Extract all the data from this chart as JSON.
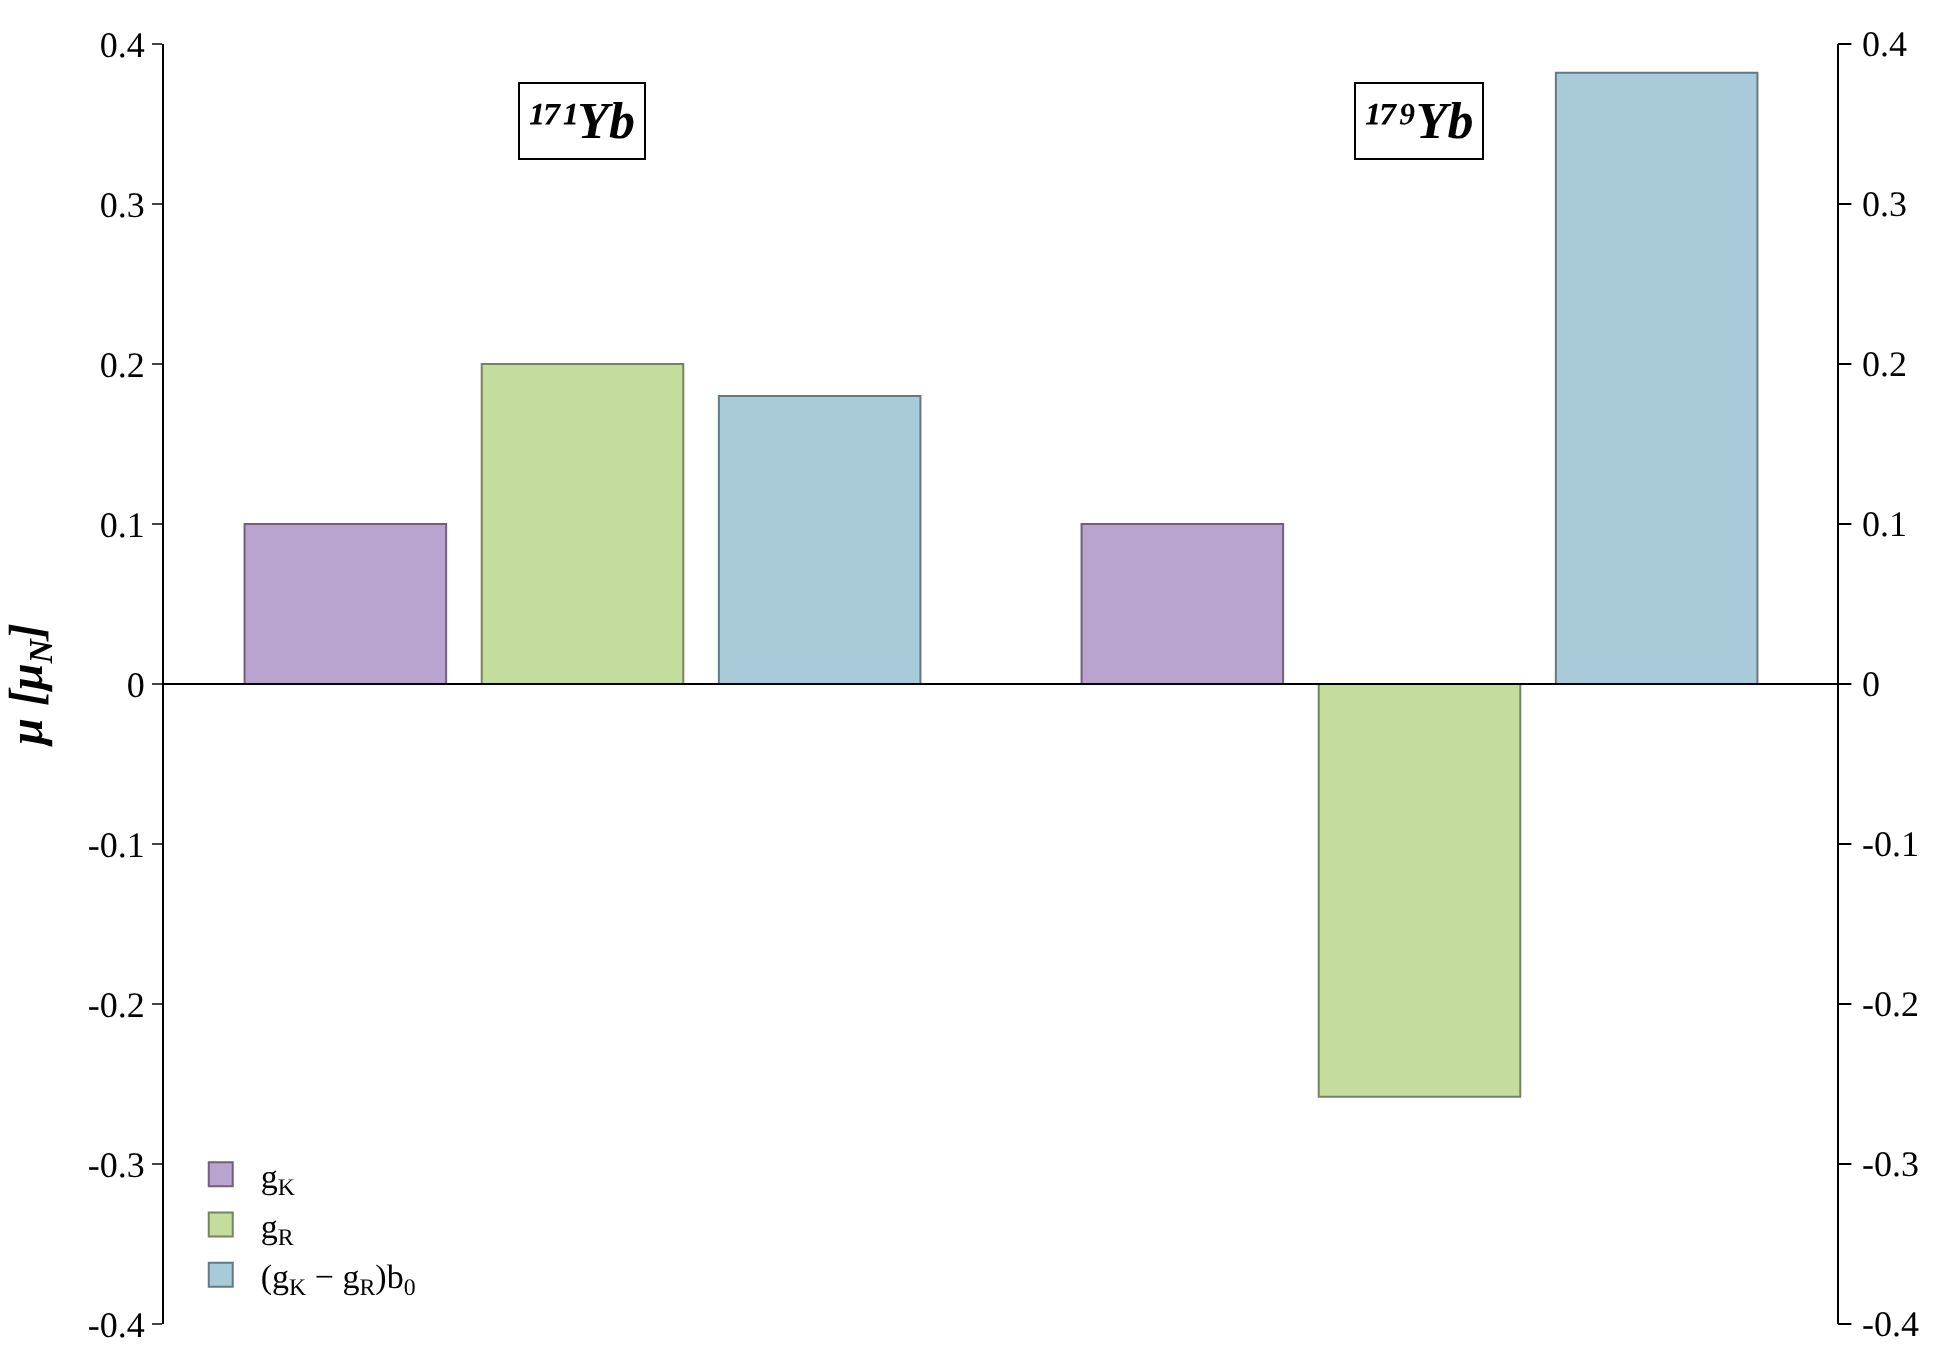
{
  "chart_data": {
    "type": "bar",
    "categories": [
      "¹⁷¹Yb",
      "¹⁷⁹Yb"
    ],
    "ylabel": "μ [μ$_{N}$]",
    "series": [
      {
        "name": "g$_{K}$",
        "color": "#b9a3cf",
        "values": [
          0.1,
          0.1
        ]
      },
      {
        "name": "g$_{R}$",
        "color": "#c5dd9c",
        "values": [
          0.2,
          -0.258
        ]
      },
      {
        "name": "(g$_{K}$ − g$_{R}$)b$_{0}$",
        "color": "#a9cbd9",
        "values": [
          0.18,
          0.382
        ]
      }
    ],
    "ylim": [
      -0.4,
      0.4
    ],
    "yticks": [
      -0.4,
      -0.3,
      -0.2,
      -0.1,
      0,
      0.1,
      0.2,
      0.3,
      0.4
    ],
    "y2lim": [
      -0.4,
      0.4
    ],
    "y2ticks": [
      -0.4,
      -0.3,
      -0.2,
      -0.1,
      0,
      0.1,
      0.2,
      0.3,
      0.4
    ],
    "ref_lines": [
      {
        "axis": "y",
        "value": 0,
        "color": "#000000"
      }
    ],
    "tick_labels": "y",
    "legend": "bottom left"
  }
}
